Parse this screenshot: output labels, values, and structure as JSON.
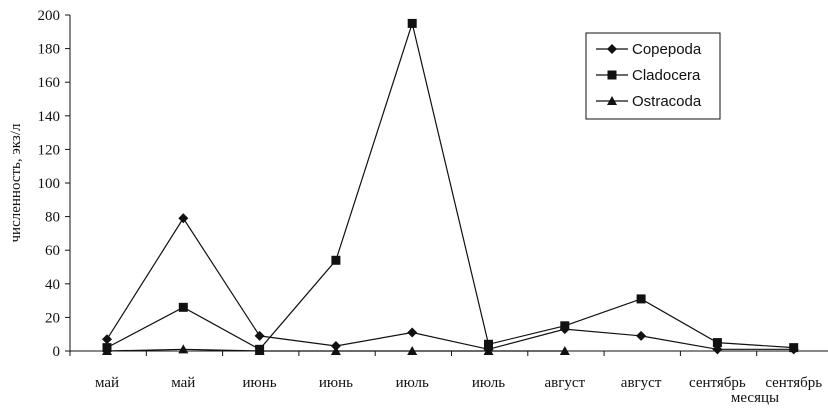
{
  "chart_data": {
    "type": "line",
    "title": "",
    "xlabel": "месяцы",
    "ylabel": "численность, экз/л",
    "ylim": [
      0,
      200
    ],
    "yticks": [
      0,
      20,
      40,
      60,
      80,
      100,
      120,
      140,
      160,
      180,
      200
    ],
    "categories": [
      "май",
      "май",
      "июнь",
      "июнь",
      "июль",
      "июль",
      "август",
      "август",
      "сентябрь",
      "сентябрь"
    ],
    "legend_position": "top-right",
    "grid": false,
    "series": [
      {
        "name": "Copepoda",
        "marker": "diamond",
        "color": "#111111",
        "values": [
          7,
          79,
          9,
          3,
          11,
          1,
          13,
          9,
          1,
          1
        ]
      },
      {
        "name": "Cladocera",
        "marker": "square",
        "color": "#111111",
        "values": [
          2,
          26,
          1,
          54,
          195,
          4,
          15,
          31,
          5,
          2
        ]
      },
      {
        "name": "Ostracoda",
        "marker": "triangle",
        "color": "#111111",
        "values": [
          0,
          1,
          0,
          0,
          0,
          0,
          0,
          null,
          null,
          null
        ]
      }
    ]
  }
}
